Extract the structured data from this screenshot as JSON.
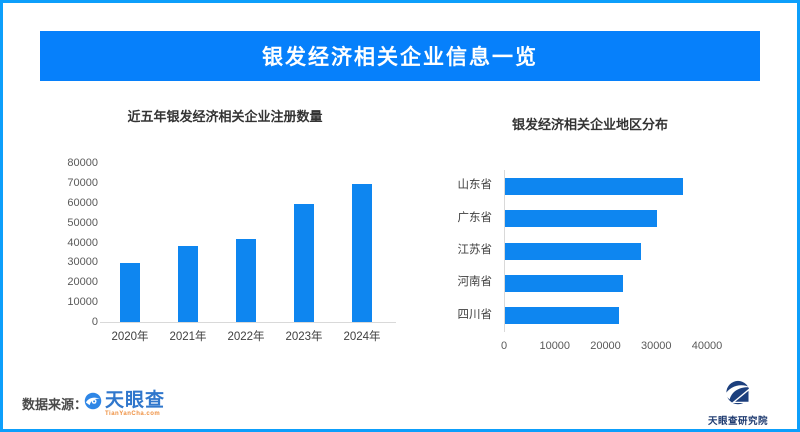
{
  "header": {
    "title": "银发经济相关企业信息一览"
  },
  "colors": {
    "frame": "#0d9ffb",
    "banner": "#0680fb",
    "bar": "#0e86f0",
    "axis_line": "#d9d9d9",
    "axis_text": "#595959",
    "tianyancha_blue": "#3077cc",
    "tianyancha_orange": "#ee9041",
    "institute_navy": "#1f3b70"
  },
  "chart_data": [
    {
      "type": "bar",
      "title": "近五年银发经济相关企业注册数量",
      "categories": [
        "2020年",
        "2021年",
        "2022年",
        "2023年",
        "2024年"
      ],
      "values": [
        29500,
        38000,
        42000,
        59500,
        69500
      ],
      "ylim": [
        0,
        80000
      ],
      "yticks": [
        0,
        10000,
        20000,
        30000,
        40000,
        50000,
        60000,
        70000,
        80000
      ],
      "grid": false,
      "legend": "none"
    },
    {
      "type": "bar",
      "orientation": "horizontal",
      "title": "银发经济相关企业地区分布",
      "categories": [
        "山东省",
        "广东省",
        "江苏省",
        "河南省",
        "四川省"
      ],
      "values": [
        35000,
        30000,
        26800,
        23300,
        22400
      ],
      "xlim": [
        0,
        40000
      ],
      "xticks": [
        0,
        10000,
        20000,
        30000,
        40000
      ],
      "grid": false,
      "legend": "none"
    }
  ],
  "footer": {
    "source_label": "数据来源：",
    "tianyancha_name": "天眼查",
    "tianyancha_url": "TianYanCha.com",
    "institute_name": "天眼查研究院"
  }
}
